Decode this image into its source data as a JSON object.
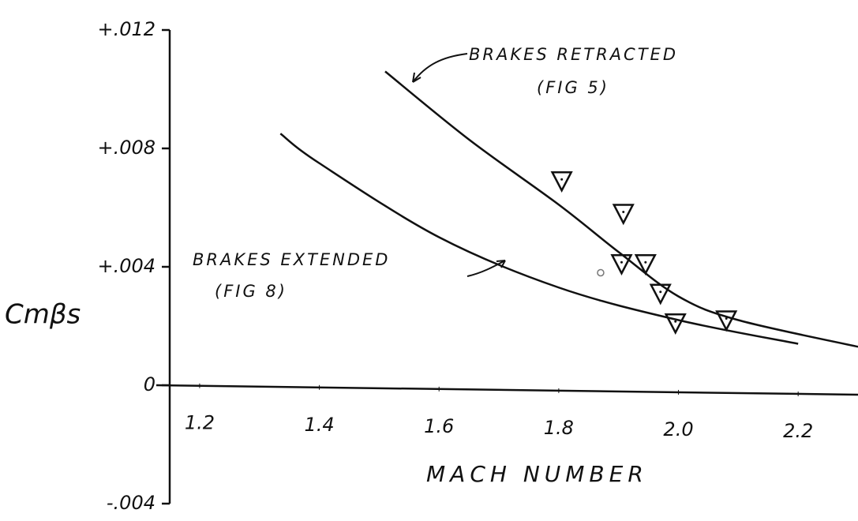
{
  "chart_data": {
    "type": "line",
    "xlabel": "MACH NUMBER",
    "ylabel": "Cmβs",
    "xlim": [
      1.15,
      2.3
    ],
    "ylim": [
      -0.004,
      0.012
    ],
    "xticks": [
      1.2,
      1.4,
      1.6,
      1.8,
      {
        "value": 2,
        "label": "2.0"
      },
      2.2
    ],
    "yticks": [
      {
        "value": -0.004,
        "label": "-.004"
      },
      0,
      {
        "value": 0.004,
        "label": "+.004"
      },
      {
        "value": 0.008,
        "label": "+.008"
      },
      {
        "value": 0.012,
        "label": "+.012"
      }
    ],
    "series": [
      {
        "name": "BRAKES RETRACTED",
        "figure": "(FIG 5)",
        "color": "#111111",
        "x": [
          1.51,
          1.65,
          1.8,
          1.9,
          2.0,
          2.1,
          2.3
        ],
        "values": [
          0.0106,
          0.0083,
          0.0061,
          0.0045,
          0.003,
          0.0022,
          0.0013
        ]
      },
      {
        "name": "BRAKES EXTENDED",
        "figure": "(FIG 8)",
        "color": "#111111",
        "x": [
          1.335,
          1.4,
          1.6,
          1.8,
          2.0,
          2.2
        ],
        "values": [
          0.0085,
          0.0075,
          0.005,
          0.0033,
          0.0022,
          0.0014
        ]
      }
    ],
    "points": [
      {
        "marker": "triangle",
        "color": "#111111",
        "x": [
          1.805,
          1.908,
          1.905,
          1.945,
          1.97,
          1.995,
          2.08
        ],
        "values": [
          0.0069,
          0.0058,
          0.0041,
          0.0041,
          0.0031,
          0.0021,
          0.0022
        ]
      },
      {
        "marker": "circle",
        "color": "#777777",
        "x": [
          1.87
        ],
        "values": [
          0.0038
        ]
      }
    ]
  }
}
